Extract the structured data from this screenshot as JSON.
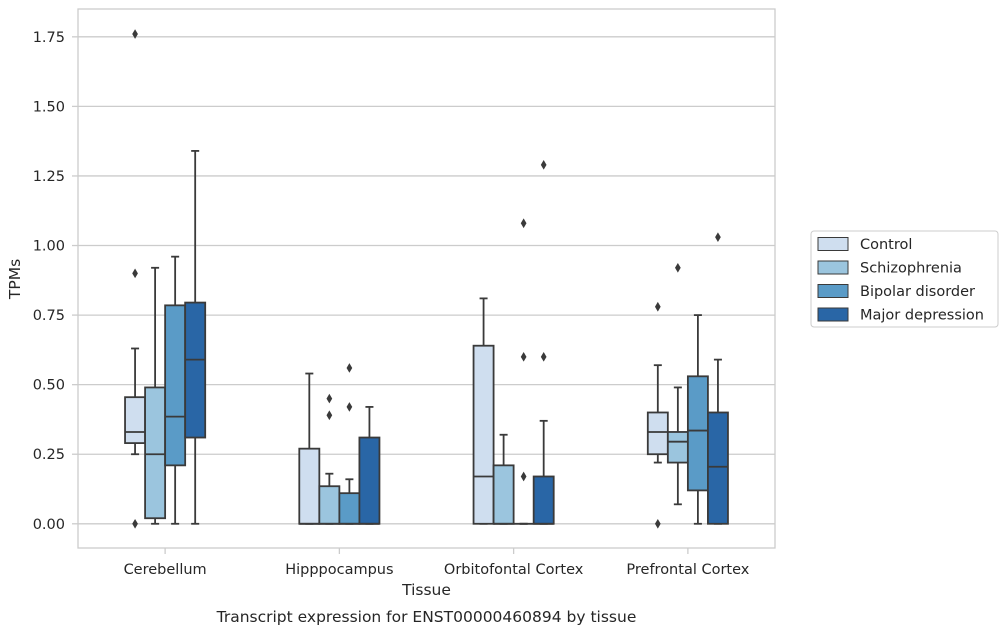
{
  "chart_data": {
    "type": "box",
    "xlabel": "Tissue",
    "ylabel": "TPMs",
    "caption": "Transcript expression for ENST00000460894 by tissue",
    "ylim": [
      -0.087,
      1.85
    ],
    "yticks": [
      0.0,
      0.25,
      0.5,
      0.75,
      1.0,
      1.25,
      1.5,
      1.75
    ],
    "ytick_labels": [
      "0.00",
      "0.25",
      "0.50",
      "0.75",
      "1.00",
      "1.25",
      "1.50",
      "1.75"
    ],
    "grid": "horizontal",
    "legend_position": "right",
    "categories": [
      "Cerebellum",
      "Hipppocampus",
      "Orbitofontal Cortex",
      "Prefrontal Cortex"
    ],
    "series": [
      {
        "name": "Control",
        "color": "#cfdeef",
        "boxes": [
          {
            "whislo": 0.25,
            "q1": 0.29,
            "median": 0.33,
            "q3": 0.455,
            "whishi": 0.63,
            "fliers": [
              1.76,
              0.9,
              0.0
            ]
          },
          {
            "whislo": 0.0,
            "q1": 0.0,
            "median": 0.0,
            "q3": 0.27,
            "whishi": 0.54,
            "fliers": []
          },
          {
            "whislo": 0.0,
            "q1": 0.0,
            "median": 0.17,
            "q3": 0.64,
            "whishi": 0.81,
            "fliers": []
          },
          {
            "whislo": 0.22,
            "q1": 0.25,
            "median": 0.33,
            "q3": 0.4,
            "whishi": 0.57,
            "fliers": [
              0.78,
              0.0
            ]
          }
        ]
      },
      {
        "name": "Schizophrenia",
        "color": "#9bc5de",
        "boxes": [
          {
            "whislo": 0.0,
            "q1": 0.02,
            "median": 0.25,
            "q3": 0.49,
            "whishi": 0.92,
            "fliers": []
          },
          {
            "whislo": 0.0,
            "q1": 0.0,
            "median": 0.0,
            "q3": 0.135,
            "whishi": 0.18,
            "fliers": [
              0.45,
              0.39
            ]
          },
          {
            "whislo": 0.0,
            "q1": 0.0,
            "median": 0.0,
            "q3": 0.21,
            "whishi": 0.32,
            "fliers": []
          },
          {
            "whislo": 0.07,
            "q1": 0.22,
            "median": 0.295,
            "q3": 0.33,
            "whishi": 0.49,
            "fliers": [
              0.92
            ]
          }
        ]
      },
      {
        "name": "Bipolar disorder",
        "color": "#5a9bc7",
        "boxes": [
          {
            "whislo": 0.0,
            "q1": 0.21,
            "median": 0.385,
            "q3": 0.785,
            "whishi": 0.96,
            "fliers": []
          },
          {
            "whislo": 0.0,
            "q1": 0.0,
            "median": 0.0,
            "q3": 0.11,
            "whishi": 0.16,
            "fliers": [
              0.56,
              0.42
            ]
          },
          {
            "whislo": 0.0,
            "q1": 0.0,
            "median": 0.0,
            "q3": 0.0,
            "whishi": 0.0,
            "fliers": [
              1.08,
              0.6,
              0.17
            ]
          },
          {
            "whislo": 0.0,
            "q1": 0.12,
            "median": 0.335,
            "q3": 0.53,
            "whishi": 0.75,
            "fliers": []
          }
        ]
      },
      {
        "name": "Major depression",
        "color": "#2966a6",
        "boxes": [
          {
            "whislo": 0.0,
            "q1": 0.31,
            "median": 0.59,
            "q3": 0.795,
            "whishi": 1.34,
            "fliers": []
          },
          {
            "whislo": 0.0,
            "q1": 0.0,
            "median": 0.0,
            "q3": 0.31,
            "whishi": 0.42,
            "fliers": []
          },
          {
            "whislo": 0.0,
            "q1": 0.0,
            "median": 0.0,
            "q3": 0.17,
            "whishi": 0.37,
            "fliers": [
              1.29,
              0.6
            ]
          },
          {
            "whislo": 0.0,
            "q1": 0.0,
            "median": 0.205,
            "q3": 0.4,
            "whishi": 0.59,
            "fliers": [
              1.03
            ]
          }
        ]
      }
    ]
  }
}
